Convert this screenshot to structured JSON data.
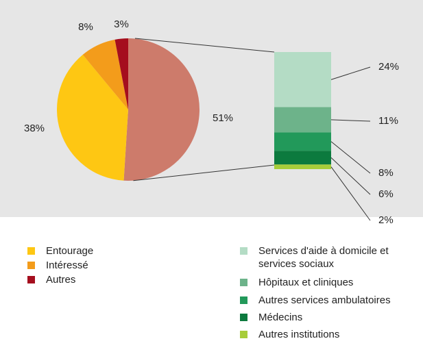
{
  "chart_data": {
    "type": "pie",
    "pie": {
      "categories": [
        null,
        "Entourage",
        "Intéressé",
        "Autres"
      ],
      "values": [
        51,
        38,
        8,
        3
      ],
      "value_labels": [
        "51%",
        "38%",
        "8%",
        "3%"
      ],
      "colors": [
        "#cd7b6b",
        "#fec713",
        "#f39c1b",
        "#a50e1e"
      ]
    },
    "bar": {
      "categories": [
        "Services d'aide à domicile et services sociaux",
        "Hôpitaux et cliniques",
        "Autres services ambulatoires",
        "Médecins",
        "Autres institutions"
      ],
      "values": [
        24,
        11,
        8,
        6,
        2
      ],
      "value_labels": [
        "24%",
        "11%",
        "8%",
        "6%",
        "2%"
      ],
      "colors": [
        "#b4dcc5",
        "#6db38a",
        "#22995a",
        "#0c7a3e",
        "#a7cd3a"
      ]
    }
  }
}
